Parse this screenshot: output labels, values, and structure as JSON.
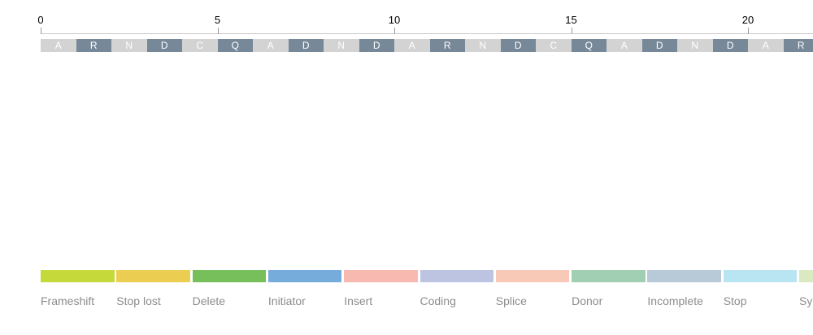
{
  "axis": {
    "ticks": [
      "0",
      "5",
      "10",
      "15",
      "20"
    ]
  },
  "sequence": {
    "residues": [
      "A",
      "R",
      "N",
      "D",
      "C",
      "Q",
      "A",
      "D",
      "N",
      "D",
      "A",
      "R",
      "N",
      "D",
      "C",
      "Q",
      "A",
      "D",
      "N",
      "D",
      "A",
      "R"
    ],
    "colors": {
      "light": "#d3d3d3",
      "dark": "#778899"
    }
  },
  "legend": {
    "items": [
      {
        "label": "Frameshift",
        "color": "#c6d93a"
      },
      {
        "label": "Stop lost",
        "color": "#ebcd52"
      },
      {
        "label": "Delete",
        "color": "#76bf5b"
      },
      {
        "label": "Initiator",
        "color": "#75acdc"
      },
      {
        "label": "Insert",
        "color": "#f7b9b0"
      },
      {
        "label": "Coding",
        "color": "#bdc4e2"
      },
      {
        "label": "Splice",
        "color": "#f9c9b8"
      },
      {
        "label": "Donor",
        "color": "#a1cfb3"
      },
      {
        "label": "Incomplete",
        "color": "#b8c9d7"
      },
      {
        "label": "Stop",
        "color": "#b9e5f2"
      },
      {
        "label": "Sy",
        "color": "#dbe9c1"
      }
    ]
  }
}
